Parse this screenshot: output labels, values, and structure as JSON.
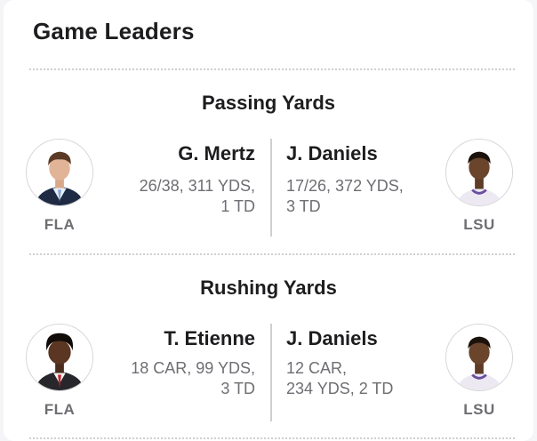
{
  "card": {
    "title": "Game Leaders"
  },
  "sections": [
    {
      "title": "Passing Yards",
      "away": {
        "name": "G. Mertz",
        "stats_line1": "26/38, 311 YDS,",
        "stats_line2": "1 TD",
        "team": "FLA"
      },
      "home": {
        "name": "J. Daniels",
        "stats_line1": "17/26, 372 YDS,",
        "stats_line2": "3 TD",
        "team": "LSU"
      }
    },
    {
      "title": "Rushing Yards",
      "away": {
        "name": "T. Etienne",
        "stats_line1": "18 CAR, 99 YDS,",
        "stats_line2": "3 TD",
        "team": "FLA"
      },
      "home": {
        "name": "J. Daniels",
        "stats_line1": "12 CAR,",
        "stats_line2": "234 YDS, 2 TD",
        "team": "LSU"
      }
    }
  ],
  "colors": {
    "divider": "#cfcfd3",
    "muted_text": "#6e6e73",
    "primary_text": "#1d1d1f"
  }
}
